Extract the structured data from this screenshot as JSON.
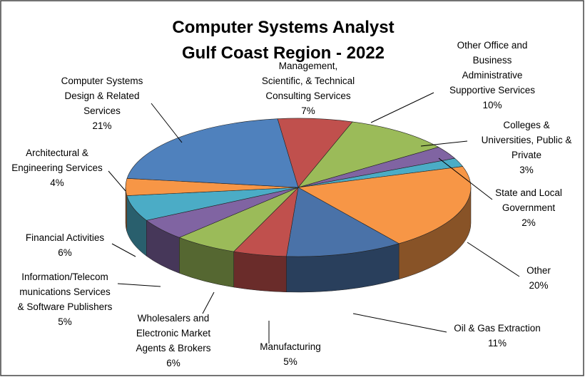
{
  "chart_data": {
    "type": "pie3d",
    "title": "Computer Systems Analyst",
    "subtitle": "Gulf Coast Region - 2022",
    "categories": [
      "Management,\nScientific, & Technical\nConsulting Services",
      "Other Office and\nBusiness\nAdministrative\nSupportive Services",
      "Colleges &\nUniversities, Public &\nPrivate",
      "State and Local\nGovernment",
      "Other",
      "Oil & Gas Extraction",
      "Manufacturing",
      "Wholesalers and\nElectronic Market\nAgents & Brokers",
      "Information/Telecom\nmunications Services\n& Software Publishers",
      "Financial Activities",
      "Architectural &\nEngineering Services",
      "Computer Systems\nDesign & Related\nServices"
    ],
    "values": [
      7,
      10,
      3,
      2,
      20,
      11,
      5,
      6,
      5,
      6,
      4,
      21
    ],
    "value_labels": [
      "7%",
      "10%",
      "3%",
      "2%",
      "20%",
      "11%",
      "5%",
      "6%",
      "5%",
      "6%",
      "4%",
      "21%"
    ],
    "colors": [
      "#c0504d",
      "#9bbb59",
      "#8064a2",
      "#4bacc6",
      "#f79646",
      "#4a72a8",
      "#c0504d",
      "#9bbb59",
      "#8064a2",
      "#4bacc6",
      "#f79646",
      "#4f81bd"
    ]
  }
}
